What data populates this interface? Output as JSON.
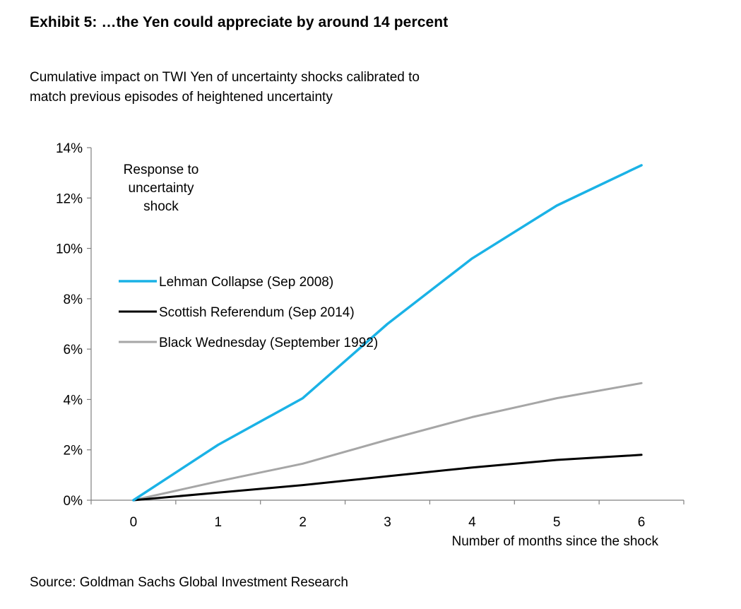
{
  "header": {
    "title": "Exhibit 5: …the Yen could appreciate by around 14 percent",
    "subtitle_line1": "Cumulative impact on TWI Yen of uncertainty shocks calibrated to",
    "subtitle_line2": "match previous episodes of heightened uncertainty"
  },
  "footer": {
    "source": "Source:  Goldman Sachs Global Investment Research"
  },
  "chart_data": {
    "type": "line",
    "title": "",
    "xlabel": "Number of months since the shock",
    "ylabel": "",
    "x": [
      0,
      1,
      2,
      3,
      4,
      5,
      6
    ],
    "xlim": [
      -0.5,
      6.5
    ],
    "ylim": [
      0,
      14
    ],
    "y_tick_values": [
      0,
      2,
      4,
      6,
      8,
      10,
      12,
      14
    ],
    "y_tick_labels": [
      "0%",
      "2%",
      "4%",
      "6%",
      "8%",
      "10%",
      "12%",
      "14%"
    ],
    "x_tick_labels": [
      "0",
      "1",
      "2",
      "3",
      "4",
      "5",
      "6"
    ],
    "grid": false,
    "legend_title": [
      "Response to",
      "uncertainty",
      "shock"
    ],
    "legend_position": "upper-left",
    "series": [
      {
        "name": "Lehman Collapse (Sep 2008)",
        "color": "#1ab2e6",
        "values": [
          0.0,
          2.2,
          4.05,
          7.0,
          9.6,
          11.7,
          13.3
        ]
      },
      {
        "name": "Scottish Referendum (Sep 2014)",
        "color": "#000000",
        "values": [
          0.0,
          0.3,
          0.6,
          0.95,
          1.3,
          1.6,
          1.8
        ]
      },
      {
        "name": "Black Wednesday (September 1992)",
        "color": "#a6a6a6",
        "values": [
          0.0,
          0.75,
          1.45,
          2.4,
          3.3,
          4.05,
          4.65
        ]
      }
    ]
  }
}
